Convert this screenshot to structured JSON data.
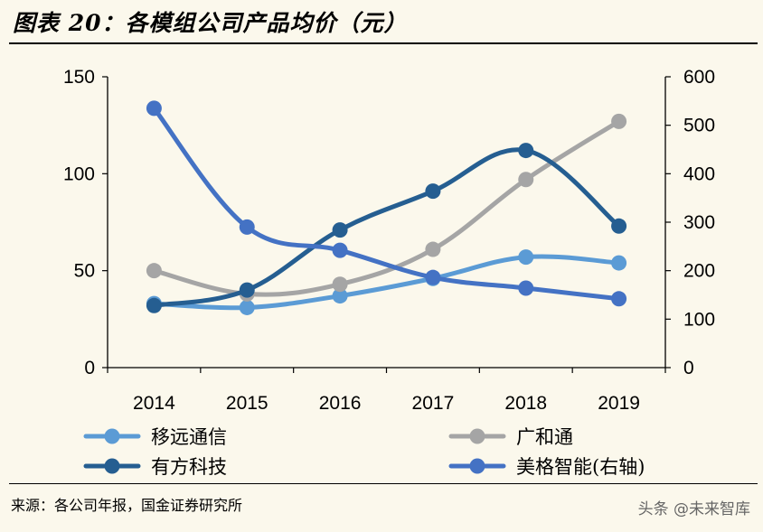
{
  "header": {
    "title": "图表 20：各模组公司产品均价（元）"
  },
  "footer": {
    "source": "来源：各公司年报，国金证券研究所",
    "watermark": "头条 @未来智库"
  },
  "chart_data": {
    "type": "line",
    "x": [
      "2014",
      "2015",
      "2016",
      "2017",
      "2018",
      "2019"
    ],
    "left_axis": {
      "ylim": [
        0,
        150
      ],
      "ticks": [
        "0",
        "50",
        "100",
        "150"
      ]
    },
    "right_axis": {
      "ylim": [
        0,
        600
      ],
      "ticks": [
        "0",
        "100",
        "200",
        "300",
        "400",
        "500",
        "600"
      ]
    },
    "grid": false,
    "legend_position": "bottom",
    "series": [
      {
        "name": "移远通信",
        "axis": "left",
        "color": "#5b9bd5",
        "values": [
          33,
          31,
          37,
          46,
          57,
          54
        ]
      },
      {
        "name": "广和通",
        "axis": "left",
        "color": "#a5a5a5",
        "values": [
          50,
          38,
          43,
          61,
          97,
          127
        ]
      },
      {
        "name": "有方科技",
        "axis": "left",
        "color": "#255e91",
        "values": [
          32,
          40,
          71,
          91,
          112,
          73
        ]
      },
      {
        "name": "美格智能(右轴)",
        "axis": "right",
        "color": "#4472c4",
        "values": [
          535,
          290,
          242,
          186,
          164,
          142
        ]
      }
    ]
  }
}
